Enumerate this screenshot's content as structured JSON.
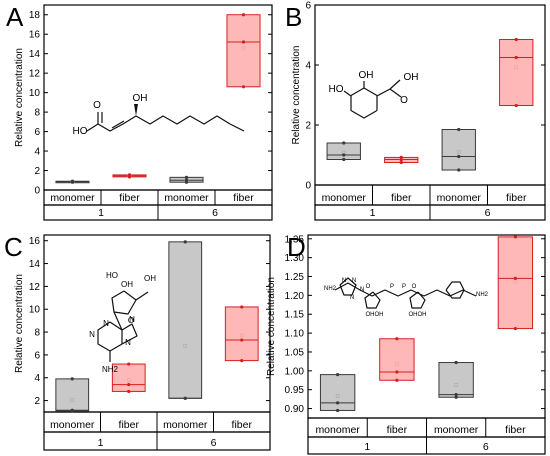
{
  "colors": {
    "monomer_fill": "#c8c8c8",
    "monomer_stroke": "#3a3a3a",
    "fiber_fill": "#ffb8b8",
    "fiber_stroke": "#d61f1f",
    "frame": "#000000"
  },
  "chart_data": [
    {
      "panel": "A",
      "type": "box",
      "ylabel": "Relative concentration",
      "ylim": [
        0,
        19
      ],
      "yticks": [
        "0",
        "2",
        "4",
        "6",
        "8",
        "10",
        "12",
        "14",
        "16",
        "18"
      ],
      "categories": [
        "monomer",
        "fiber",
        "monomer",
        "fiber"
      ],
      "groups": [
        "1",
        "6"
      ],
      "boxes": [
        {
          "category": "monomer",
          "group": "1",
          "q1": 0.8,
          "median": 0.85,
          "q3": 0.9,
          "mean": 0.85,
          "points": [
            0.8,
            0.85,
            0.9
          ]
        },
        {
          "category": "fiber",
          "group": "1",
          "q1": 1.35,
          "median": 1.45,
          "q3": 1.55,
          "mean": 1.45,
          "points": [
            1.35,
            1.45,
            1.55
          ]
        },
        {
          "category": "monomer",
          "group": "6",
          "q1": 0.8,
          "median": 1.0,
          "q3": 1.3,
          "mean": 1.05,
          "points": [
            0.8,
            1.0,
            1.3
          ]
        },
        {
          "category": "fiber",
          "group": "6",
          "q1": 10.6,
          "median": 15.2,
          "q3": 18.0,
          "mean": 14.6,
          "points": [
            10.6,
            15.2,
            18.0
          ]
        }
      ],
      "molecule_labels": [
        "O",
        "OH",
        "HO"
      ]
    },
    {
      "panel": "B",
      "type": "box",
      "ylabel": "Relative concentration",
      "ylim": [
        0,
        6
      ],
      "yticks": [
        "0",
        "2",
        "4",
        "6"
      ],
      "categories": [
        "monomer",
        "fiber",
        "monomer",
        "fiber"
      ],
      "groups": [
        "1",
        "6"
      ],
      "boxes": [
        {
          "category": "monomer",
          "group": "1",
          "q1": 0.85,
          "median": 1.0,
          "q3": 1.4,
          "mean": 1.08,
          "points": [
            0.85,
            1.0,
            1.4
          ]
        },
        {
          "category": "fiber",
          "group": "1",
          "q1": 0.75,
          "median": 0.85,
          "q3": 0.92,
          "mean": 0.84,
          "points": [
            0.75,
            0.85,
            0.92
          ]
        },
        {
          "category": "monomer",
          "group": "6",
          "q1": 0.5,
          "median": 0.95,
          "q3": 1.85,
          "mean": 1.1,
          "points": [
            0.5,
            0.95,
            1.85
          ]
        },
        {
          "category": "fiber",
          "group": "6",
          "q1": 2.65,
          "median": 4.25,
          "q3": 4.85,
          "mean": 3.92,
          "points": [
            2.65,
            4.25,
            4.85
          ]
        }
      ],
      "molecule_labels": [
        "OH",
        "HO",
        "OH",
        "O"
      ]
    },
    {
      "panel": "C",
      "type": "box",
      "ylabel": "Relative concentration",
      "ylim": [
        1,
        16.5
      ],
      "yticks": [
        "2",
        "4",
        "6",
        "8",
        "10",
        "12",
        "14",
        "16"
      ],
      "categories": [
        "monomer",
        "fiber",
        "monomer",
        "fiber"
      ],
      "groups": [
        "1",
        "6"
      ],
      "boxes": [
        {
          "category": "monomer",
          "group": "1",
          "q1": 1.1,
          "median": 1.15,
          "q3": 3.9,
          "mean": 2.05,
          "points": [
            1.1,
            1.15,
            3.9
          ]
        },
        {
          "category": "fiber",
          "group": "1",
          "q1": 2.8,
          "median": 3.4,
          "q3": 5.2,
          "mean": 3.8,
          "points": [
            2.8,
            3.4,
            5.2
          ]
        },
        {
          "category": "monomer",
          "group": "6",
          "q1": 2.2,
          "median": 2.2,
          "q3": 15.9,
          "mean": 6.8,
          "points": [
            2.2,
            2.2,
            15.9
          ]
        },
        {
          "category": "fiber",
          "group": "6",
          "q1": 5.5,
          "median": 7.3,
          "q3": 10.2,
          "mean": 7.7,
          "points": [
            5.5,
            7.3,
            10.2
          ]
        }
      ],
      "molecule_labels": [
        "HO",
        "OH",
        "OH",
        "O",
        "N",
        "N",
        "N",
        "N",
        "NH2"
      ]
    },
    {
      "panel": "D",
      "type": "box",
      "ylabel": "Relative concentration",
      "ylim": [
        0.875,
        1.36
      ],
      "yticks": [
        "0.90",
        "0.95",
        "1.00",
        "1.05",
        "1.10",
        "1.15",
        "1.20",
        "1.25",
        "1.30",
        "1.35"
      ],
      "categories": [
        "monomer",
        "fiber",
        "monomer",
        "fiber"
      ],
      "groups": [
        "1",
        "6"
      ],
      "boxes": [
        {
          "category": "monomer",
          "group": "1",
          "q1": 0.895,
          "median": 0.915,
          "q3": 0.99,
          "mean": 0.933,
          "points": [
            0.895,
            0.915,
            0.99
          ]
        },
        {
          "category": "fiber",
          "group": "1",
          "q1": 0.975,
          "median": 0.997,
          "q3": 1.085,
          "mean": 1.019,
          "points": [
            0.975,
            0.997,
            1.085
          ]
        },
        {
          "category": "monomer",
          "group": "6",
          "q1": 0.93,
          "median": 0.937,
          "q3": 1.022,
          "mean": 0.963,
          "points": [
            0.93,
            0.937,
            1.022
          ]
        },
        {
          "category": "fiber",
          "group": "6",
          "q1": 1.112,
          "median": 1.245,
          "q3": 1.355,
          "mean": 1.237,
          "points": [
            1.112,
            1.245,
            1.355
          ]
        }
      ],
      "molecule_labels": [
        "NH2",
        "N",
        "N",
        "N",
        "N",
        "O",
        "OH",
        "OH",
        "P",
        "P",
        "O",
        "OH",
        "OH",
        "NH2"
      ]
    }
  ]
}
